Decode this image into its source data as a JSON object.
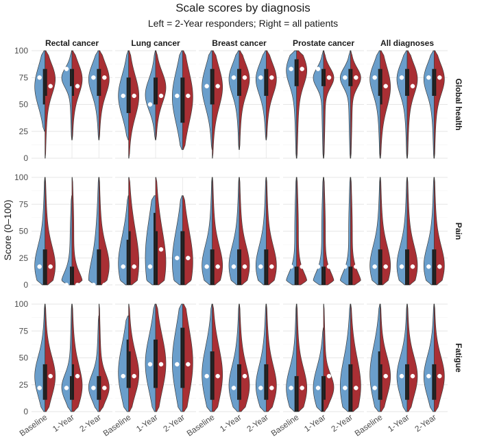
{
  "title": "Scale scores by diagnosis",
  "subtitle": "Left = 2-Year responders; Right = all patients",
  "chart_data": {
    "type": "split-violin",
    "ylabel": "Score (0–100)",
    "xlabel": "",
    "ylim": [
      0,
      100
    ],
    "yticks": [
      0,
      25,
      50,
      75,
      100
    ],
    "timepoints": [
      "Baseline",
      "1-Year",
      "2-Year"
    ],
    "diagnoses": [
      "Rectal cancer",
      "Lung cancer",
      "Breast cancer",
      "Prostate cancer",
      "All diagnoses"
    ],
    "scales": [
      "Global health",
      "Pain",
      "Fatigue"
    ],
    "halves": [
      {
        "side": "left",
        "label": "2-Year responders",
        "color": "#6a9ecb"
      },
      {
        "side": "right",
        "label": "all patients",
        "color": "#a92f34"
      }
    ],
    "grid": true,
    "cells": {
      "Global health": {
        "Rectal cancer": [
          {
            "left": {
              "q1": 50,
              "median": 67,
              "q3": 83,
              "mean": 75,
              "min": 25,
              "max": 100
            },
            "right": {
              "q1": 58,
              "median": 75,
              "q3": 83,
              "mean": 67,
              "min": 0,
              "max": 100
            }
          },
          {
            "left": {
              "q1": 67,
              "median": 75,
              "q3": 83,
              "mean": 83,
              "min": 17,
              "max": 100
            },
            "right": {
              "q1": 58,
              "median": 75,
              "q3": 83,
              "mean": 67,
              "min": 17,
              "max": 100
            }
          },
          {
            "left": {
              "q1": 58,
              "median": 75,
              "q3": 83,
              "mean": 75,
              "min": 17,
              "max": 100
            },
            "right": {
              "q1": 58,
              "median": 75,
              "q3": 83,
              "mean": 75,
              "min": 17,
              "max": 100
            }
          }
        ],
        "Lung cancer": [
          {
            "left": {
              "q1": 42,
              "median": 58,
              "q3": 75,
              "mean": 58,
              "min": 17,
              "max": 100
            },
            "right": {
              "q1": 42,
              "median": 58,
              "q3": 75,
              "mean": 58,
              "min": 0,
              "max": 100
            }
          },
          {
            "left": {
              "q1": 50,
              "median": 58,
              "q3": 75,
              "mean": 50,
              "min": 17,
              "max": 100
            },
            "right": {
              "q1": 50,
              "median": 67,
              "q3": 75,
              "mean": 58,
              "min": 17,
              "max": 100
            }
          },
          {
            "left": {
              "q1": 33,
              "median": 58,
              "q3": 75,
              "mean": 58,
              "min": 8,
              "max": 100
            },
            "right": {
              "q1": 33,
              "median": 58,
              "q3": 75,
              "mean": 58,
              "min": 8,
              "max": 100
            }
          }
        ],
        "Breast cancer": [
          {
            "left": {
              "q1": 50,
              "median": 67,
              "q3": 83,
              "mean": 67,
              "min": 8,
              "max": 100
            },
            "right": {
              "q1": 50,
              "median": 67,
              "q3": 83,
              "mean": 67,
              "min": 0,
              "max": 100
            }
          },
          {
            "left": {
              "q1": 58,
              "median": 75,
              "q3": 83,
              "mean": 75,
              "min": 8,
              "max": 100
            },
            "right": {
              "q1": 58,
              "median": 75,
              "q3": 83,
              "mean": 75,
              "min": 8,
              "max": 100
            }
          },
          {
            "left": {
              "q1": 58,
              "median": 75,
              "q3": 83,
              "mean": 75,
              "min": 17,
              "max": 100
            },
            "right": {
              "q1": 58,
              "median": 75,
              "q3": 83,
              "mean": 75,
              "min": 17,
              "max": 100
            }
          }
        ],
        "Prostate cancer": [
          {
            "left": {
              "q1": 67,
              "median": 83,
              "q3": 92,
              "mean": 83,
              "min": 0,
              "max": 100
            },
            "right": {
              "q1": 67,
              "median": 83,
              "q3": 92,
              "mean": 83,
              "min": 0,
              "max": 100
            }
          },
          {
            "left": {
              "q1": 67,
              "median": 75,
              "q3": 83,
              "mean": 83,
              "min": 0,
              "max": 100
            },
            "right": {
              "q1": 67,
              "median": 75,
              "q3": 83,
              "mean": 75,
              "min": 0,
              "max": 100
            }
          },
          {
            "left": {
              "q1": 67,
              "median": 75,
              "q3": 83,
              "mean": 75,
              "min": 0,
              "max": 100
            },
            "right": {
              "q1": 67,
              "median": 75,
              "q3": 83,
              "mean": 75,
              "min": 0,
              "max": 100
            }
          }
        ],
        "All diagnoses": [
          {
            "left": {
              "q1": 58,
              "median": 75,
              "q3": 83,
              "mean": 75,
              "min": 0,
              "max": 100
            },
            "right": {
              "q1": 50,
              "median": 67,
              "q3": 83,
              "mean": 67,
              "min": 0,
              "max": 100
            }
          },
          {
            "left": {
              "q1": 58,
              "median": 75,
              "q3": 83,
              "mean": 75,
              "min": 0,
              "max": 100
            },
            "right": {
              "q1": 58,
              "median": 75,
              "q3": 83,
              "mean": 67,
              "min": 0,
              "max": 100
            }
          },
          {
            "left": {
              "q1": 58,
              "median": 75,
              "q3": 83,
              "mean": 75,
              "min": 0,
              "max": 100
            },
            "right": {
              "q1": 58,
              "median": 75,
              "q3": 83,
              "mean": 75,
              "min": 0,
              "max": 100
            }
          }
        ]
      },
      "Pain": {
        "Rectal cancer": [
          {
            "left": {
              "q1": 0,
              "median": 17,
              "q3": 33,
              "mean": 17,
              "min": 0,
              "max": 100
            },
            "right": {
              "q1": 0,
              "median": 17,
              "q3": 33,
              "mean": 17,
              "min": 0,
              "max": 100
            }
          },
          {
            "left": {
              "q1": 0,
              "median": 0,
              "q3": 17,
              "mean": 0,
              "min": 0,
              "max": 83
            },
            "right": {
              "q1": 0,
              "median": 0,
              "q3": 17,
              "mean": 0,
              "min": 0,
              "max": 100
            }
          },
          {
            "left": {
              "q1": 0,
              "median": 0,
              "q3": 33,
              "mean": 0,
              "min": 0,
              "max": 100
            },
            "right": {
              "q1": 0,
              "median": 17,
              "q3": 33,
              "mean": 0,
              "min": 0,
              "max": 100
            }
          }
        ],
        "Lung cancer": [
          {
            "left": {
              "q1": 0,
              "median": 17,
              "q3": 42,
              "mean": 17,
              "min": 0,
              "max": 83
            },
            "right": {
              "q1": 0,
              "median": 17,
              "q3": 50,
              "mean": 17,
              "min": 0,
              "max": 100
            }
          },
          {
            "left": {
              "q1": 0,
              "median": 17,
              "q3": 67,
              "mean": 17,
              "min": 0,
              "max": 83
            },
            "right": {
              "q1": 0,
              "median": 17,
              "q3": 50,
              "mean": 33,
              "min": 0,
              "max": 100
            }
          },
          {
            "left": {
              "q1": 0,
              "median": 17,
              "q3": 50,
              "mean": 25,
              "min": 0,
              "max": 83
            },
            "right": {
              "q1": 0,
              "median": 17,
              "q3": 50,
              "mean": 25,
              "min": 0,
              "max": 83
            }
          }
        ],
        "Breast cancer": [
          {
            "left": {
              "q1": 0,
              "median": 17,
              "q3": 33,
              "mean": 17,
              "min": 0,
              "max": 100
            },
            "right": {
              "q1": 0,
              "median": 17,
              "q3": 33,
              "mean": 17,
              "min": 0,
              "max": 100
            }
          },
          {
            "left": {
              "q1": 0,
              "median": 17,
              "q3": 33,
              "mean": 17,
              "min": 0,
              "max": 100
            },
            "right": {
              "q1": 0,
              "median": 17,
              "q3": 33,
              "mean": 17,
              "min": 0,
              "max": 100
            }
          },
          {
            "left": {
              "q1": 0,
              "median": 17,
              "q3": 33,
              "mean": 17,
              "min": 0,
              "max": 100
            },
            "right": {
              "q1": 0,
              "median": 17,
              "q3": 33,
              "mean": 17,
              "min": 0,
              "max": 100
            }
          }
        ],
        "Prostate cancer": [
          {
            "left": {
              "q1": 0,
              "median": 0,
              "q3": 17,
              "mean": 17,
              "min": 0,
              "max": 100
            },
            "right": {
              "q1": 0,
              "median": 0,
              "q3": 17,
              "mean": 17,
              "min": 0,
              "max": 100
            }
          },
          {
            "left": {
              "q1": 0,
              "median": 0,
              "q3": 17,
              "mean": 17,
              "min": 0,
              "max": 100
            },
            "right": {
              "q1": 0,
              "median": 0,
              "q3": 17,
              "mean": 17,
              "min": 0,
              "max": 100
            }
          },
          {
            "left": {
              "q1": 0,
              "median": 0,
              "q3": 17,
              "mean": 17,
              "min": 0,
              "max": 100
            },
            "right": {
              "q1": 0,
              "median": 0,
              "q3": 17,
              "mean": 17,
              "min": 0,
              "max": 100
            }
          }
        ],
        "All diagnoses": [
          {
            "left": {
              "q1": 0,
              "median": 17,
              "q3": 33,
              "mean": 17,
              "min": 0,
              "max": 100
            },
            "right": {
              "q1": 0,
              "median": 17,
              "q3": 33,
              "mean": 17,
              "min": 0,
              "max": 100
            }
          },
          {
            "left": {
              "q1": 0,
              "median": 17,
              "q3": 33,
              "mean": 17,
              "min": 0,
              "max": 100
            },
            "right": {
              "q1": 0,
              "median": 17,
              "q3": 33,
              "mean": 17,
              "min": 0,
              "max": 100
            }
          },
          {
            "left": {
              "q1": 0,
              "median": 17,
              "q3": 33,
              "mean": 17,
              "min": 0,
              "max": 100
            },
            "right": {
              "q1": 0,
              "median": 17,
              "q3": 33,
              "mean": 17,
              "min": 0,
              "max": 100
            }
          }
        ]
      },
      "Fatigue": {
        "Rectal cancer": [
          {
            "left": {
              "q1": 11,
              "median": 33,
              "q3": 44,
              "mean": 22,
              "min": 0,
              "max": 100
            },
            "right": {
              "q1": 11,
              "median": 33,
              "q3": 44,
              "mean": 33,
              "min": 0,
              "max": 100
            }
          },
          {
            "left": {
              "q1": 11,
              "median": 22,
              "q3": 33,
              "mean": 22,
              "min": 0,
              "max": 100
            },
            "right": {
              "q1": 11,
              "median": 22,
              "q3": 44,
              "mean": 33,
              "min": 0,
              "max": 100
            }
          },
          {
            "left": {
              "q1": 11,
              "median": 22,
              "q3": 33,
              "mean": 22,
              "min": 0,
              "max": 89
            },
            "right": {
              "q1": 11,
              "median": 22,
              "q3": 33,
              "mean": 22,
              "min": 0,
              "max": 100
            }
          }
        ],
        "Lung cancer": [
          {
            "left": {
              "q1": 22,
              "median": 33,
              "q3": 67,
              "mean": 33,
              "min": 0,
              "max": 89
            },
            "right": {
              "q1": 22,
              "median": 33,
              "q3": 56,
              "mean": 33,
              "min": 0,
              "max": 100
            }
          },
          {
            "left": {
              "q1": 22,
              "median": 44,
              "q3": 67,
              "mean": 44,
              "min": 0,
              "max": 100
            },
            "right": {
              "q1": 22,
              "median": 44,
              "q3": 67,
              "mean": 44,
              "min": 0,
              "max": 100
            }
          },
          {
            "left": {
              "q1": 22,
              "median": 44,
              "q3": 78,
              "mean": 44,
              "min": 0,
              "max": 100
            },
            "right": {
              "q1": 22,
              "median": 44,
              "q3": 78,
              "mean": 44,
              "min": 0,
              "max": 100
            }
          }
        ],
        "Breast cancer": [
          {
            "left": {
              "q1": 11,
              "median": 33,
              "q3": 56,
              "mean": 33,
              "min": 0,
              "max": 100
            },
            "right": {
              "q1": 11,
              "median": 33,
              "q3": 56,
              "mean": 33,
              "min": 0,
              "max": 100
            }
          },
          {
            "left": {
              "q1": 11,
              "median": 22,
              "q3": 44,
              "mean": 22,
              "min": 0,
              "max": 100
            },
            "right": {
              "q1": 11,
              "median": 22,
              "q3": 44,
              "mean": 33,
              "min": 0,
              "max": 100
            }
          },
          {
            "left": {
              "q1": 11,
              "median": 22,
              "q3": 44,
              "mean": 22,
              "min": 0,
              "max": 100
            },
            "right": {
              "q1": 11,
              "median": 22,
              "q3": 44,
              "mean": 22,
              "min": 0,
              "max": 100
            }
          }
        ],
        "Prostate cancer": [
          {
            "left": {
              "q1": 0,
              "median": 22,
              "q3": 33,
              "mean": 22,
              "min": 0,
              "max": 100
            },
            "right": {
              "q1": 0,
              "median": 22,
              "q3": 33,
              "mean": 22,
              "min": 0,
              "max": 100
            }
          },
          {
            "left": {
              "q1": 0,
              "median": 22,
              "q3": 33,
              "mean": 22,
              "min": 0,
              "max": 78
            },
            "right": {
              "q1": 11,
              "median": 22,
              "q3": 33,
              "mean": 33,
              "min": 0,
              "max": 100
            }
          },
          {
            "left": {
              "q1": 0,
              "median": 22,
              "q3": 44,
              "mean": 22,
              "min": 0,
              "max": 100
            },
            "right": {
              "q1": 0,
              "median": 22,
              "q3": 44,
              "mean": 22,
              "min": 0,
              "max": 100
            }
          }
        ],
        "All diagnoses": [
          {
            "left": {
              "q1": 11,
              "median": 33,
              "q3": 56,
              "mean": 22,
              "min": 0,
              "max": 100
            },
            "right": {
              "q1": 11,
              "median": 33,
              "q3": 44,
              "mean": 33,
              "min": 0,
              "max": 100
            }
          },
          {
            "left": {
              "q1": 11,
              "median": 33,
              "q3": 44,
              "mean": 33,
              "min": 0,
              "max": 100
            },
            "right": {
              "q1": 11,
              "median": 33,
              "q3": 44,
              "mean": 33,
              "min": 0,
              "max": 100
            }
          },
          {
            "left": {
              "q1": 11,
              "median": 33,
              "q3": 44,
              "mean": 33,
              "min": 0,
              "max": 100
            },
            "right": {
              "q1": 11,
              "median": 33,
              "q3": 44,
              "mean": 33,
              "min": 0,
              "max": 100
            }
          }
        ]
      }
    }
  }
}
